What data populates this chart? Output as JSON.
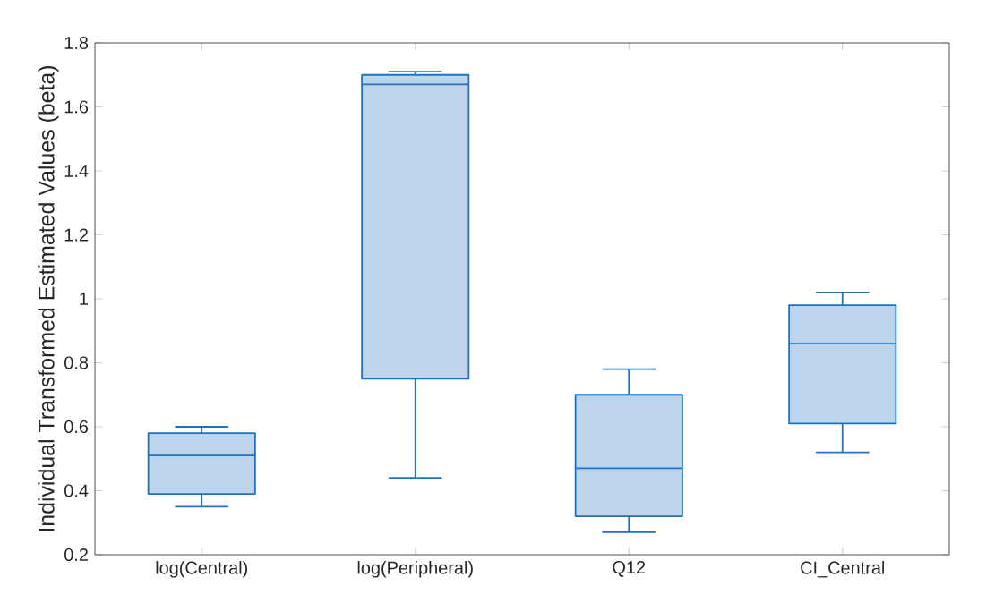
{
  "chart_data": {
    "type": "box",
    "ylabel": "Individual Transformed Estimated Values (beta)",
    "categories": [
      "log(Central)",
      "log(Peripheral)",
      "Q12",
      "CI_Central"
    ],
    "color": "#1f72c0",
    "boxes": [
      {
        "low": 0.35,
        "q1": 0.39,
        "median": 0.51,
        "q3": 0.58,
        "high": 0.6
      },
      {
        "low": 0.44,
        "q1": 0.75,
        "median": 1.67,
        "q3": 1.7,
        "high": 1.71
      },
      {
        "low": 0.27,
        "q1": 0.32,
        "median": 0.47,
        "q3": 0.7,
        "high": 0.78
      },
      {
        "low": 0.52,
        "q1": 0.61,
        "median": 0.86,
        "q3": 0.98,
        "high": 1.02
      }
    ],
    "ylim": [
      0.2,
      1.8
    ],
    "yticks": [
      0.2,
      0.4,
      0.6,
      0.8,
      1,
      1.2,
      1.4,
      1.6,
      1.8
    ]
  }
}
